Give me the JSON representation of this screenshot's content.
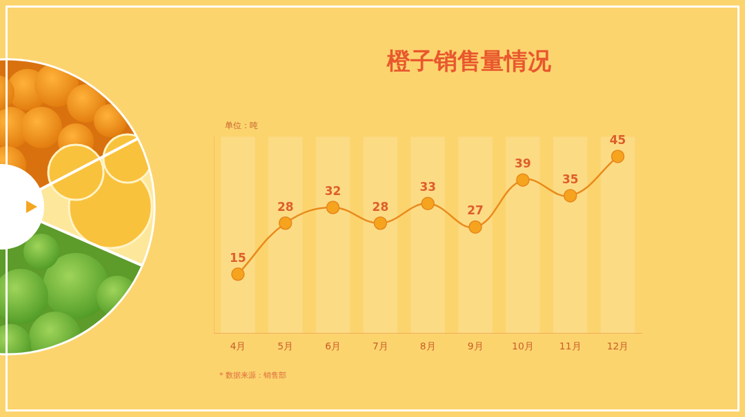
{
  "chart_data": {
    "type": "line",
    "title": "橙子销售量情况",
    "unit_label": "单位：吨",
    "source": "* 数据来源：销售部",
    "categories": [
      "4月",
      "5月",
      "6月",
      "7月",
      "8月",
      "9月",
      "10月",
      "11月",
      "12月"
    ],
    "values": [
      15,
      28,
      32,
      28,
      33,
      27,
      39,
      35,
      45
    ],
    "color": "#e98b1c",
    "marker": "circle",
    "line_style": "solid",
    "ylim": [
      0,
      50
    ],
    "grid": false,
    "data_labels": true,
    "tick_labels": "x"
  }
}
